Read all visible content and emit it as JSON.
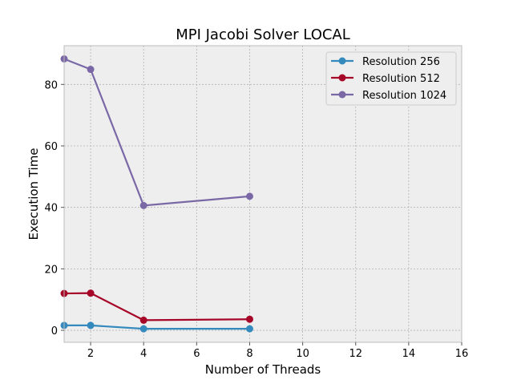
{
  "chart_data": {
    "type": "line",
    "title": "MPI Jacobi Solver LOCAL",
    "xlabel": "Number of Threads",
    "ylabel": "Execution Time",
    "xlim": [
      1,
      16
    ],
    "ylim": [
      -3.9,
      92.6
    ],
    "xticks": [
      2,
      4,
      6,
      8,
      10,
      12,
      14,
      16
    ],
    "yticks": [
      0,
      20,
      40,
      60,
      80
    ],
    "grid": true,
    "legend_position": "top-right",
    "x": [
      1,
      2,
      4,
      8
    ],
    "series": [
      {
        "name": "Resolution 256",
        "color": "#348abd",
        "values": [
          1.6,
          1.6,
          0.5,
          0.5
        ]
      },
      {
        "name": "Resolution 512",
        "color": "#a60628",
        "values": [
          12.0,
          12.1,
          3.3,
          3.6
        ]
      },
      {
        "name": "Resolution 1024",
        "color": "#7a68a6",
        "values": [
          88.3,
          84.9,
          40.6,
          43.6
        ]
      }
    ]
  }
}
